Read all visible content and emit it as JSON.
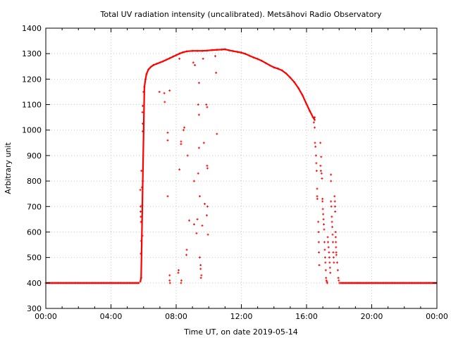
{
  "chart_data": {
    "type": "scatter",
    "title": "Total UV radiation intensity (uncalibrated). Metsähovi Radio Observatory",
    "xlabel": "Time UT, on date 2019-05-14",
    "ylabel": "Arbitrary unit",
    "xlim": [
      0,
      24
    ],
    "ylim": [
      300,
      1400
    ],
    "grid": true,
    "x_ticks": [
      0,
      4,
      8,
      12,
      16,
      20,
      24
    ],
    "x_tick_labels": [
      "00:00",
      "04:00",
      "08:00",
      "12:00",
      "16:00",
      "20:00",
      "00:00"
    ],
    "y_ticks": [
      300,
      400,
      500,
      600,
      700,
      800,
      900,
      1000,
      1100,
      1200,
      1300,
      1400
    ],
    "y_tick_labels": [
      "300",
      "400",
      "500",
      "600",
      "700",
      "800",
      "900",
      "1000",
      "1100",
      "1200",
      "1300",
      "1400"
    ],
    "color": "#ff0000",
    "baseline_segments": [
      {
        "x_start": 0,
        "x_end": 5.75,
        "step": 0.08,
        "value": 400
      },
      {
        "x_start": 18.1,
        "x_end": 24,
        "step": 0.08,
        "value": 400
      }
    ],
    "main_curve": [
      [
        5.8,
        405
      ],
      [
        5.85,
        420
      ],
      [
        5.95,
        800
      ],
      [
        6.05,
        1170
      ],
      [
        6.12,
        1200
      ],
      [
        6.18,
        1220
      ],
      [
        6.3,
        1238
      ],
      [
        6.45,
        1248
      ],
      [
        6.6,
        1255
      ],
      [
        6.8,
        1260
      ],
      [
        7.0,
        1265
      ],
      [
        7.2,
        1270
      ],
      [
        7.4,
        1276
      ],
      [
        7.6,
        1282
      ],
      [
        7.8,
        1288
      ],
      [
        8.0,
        1294
      ],
      [
        8.2,
        1300
      ],
      [
        8.4,
        1305
      ],
      [
        8.65,
        1309
      ],
      [
        9.0,
        1311
      ],
      [
        9.3,
        1311
      ],
      [
        9.6,
        1311
      ],
      [
        9.9,
        1312
      ],
      [
        10.2,
        1314
      ],
      [
        10.5,
        1315
      ],
      [
        10.8,
        1316
      ],
      [
        11.0,
        1317
      ],
      [
        11.25,
        1313
      ],
      [
        11.5,
        1310
      ],
      [
        11.75,
        1307
      ],
      [
        12.0,
        1304
      ],
      [
        12.25,
        1299
      ],
      [
        12.5,
        1292
      ],
      [
        12.75,
        1285
      ],
      [
        13.0,
        1279
      ],
      [
        13.25,
        1272
      ],
      [
        13.5,
        1263
      ],
      [
        13.75,
        1254
      ],
      [
        14.0,
        1246
      ],
      [
        14.25,
        1241
      ],
      [
        14.5,
        1234
      ],
      [
        14.75,
        1222
      ],
      [
        15.0,
        1206
      ],
      [
        15.25,
        1188
      ],
      [
        15.5,
        1165
      ],
      [
        15.75,
        1137
      ],
      [
        16.0,
        1102
      ],
      [
        16.2,
        1075
      ],
      [
        16.4,
        1050
      ],
      [
        16.5,
        1040
      ]
    ],
    "scatter": [
      [
        5.8,
        765
      ],
      [
        5.82,
        700
      ],
      [
        5.82,
        680
      ],
      [
        5.83,
        660
      ],
      [
        5.84,
        640
      ],
      [
        5.85,
        565
      ],
      [
        5.83,
        515
      ],
      [
        5.87,
        840
      ],
      [
        5.9,
        775
      ],
      [
        5.92,
        705
      ],
      [
        5.93,
        585
      ],
      [
        5.95,
        995
      ],
      [
        5.95,
        1025
      ],
      [
        5.93,
        1070
      ],
      [
        5.95,
        1095
      ],
      [
        6.0,
        1150
      ],
      [
        6.97,
        1150
      ],
      [
        7.27,
        1145
      ],
      [
        7.3,
        1110
      ],
      [
        7.48,
        990
      ],
      [
        7.48,
        960
      ],
      [
        7.48,
        740
      ],
      [
        7.6,
        430
      ],
      [
        7.6,
        410
      ],
      [
        7.62,
        400
      ],
      [
        7.6,
        1155
      ],
      [
        8.2,
        1280
      ],
      [
        8.2,
        845
      ],
      [
        8.15,
        450
      ],
      [
        8.13,
        440
      ],
      [
        8.3,
        955
      ],
      [
        8.3,
        945
      ],
      [
        8.45,
        1000
      ],
      [
        8.5,
        1010
      ],
      [
        8.3,
        400
      ],
      [
        8.32,
        410
      ],
      [
        8.7,
        900
      ],
      [
        8.65,
        530
      ],
      [
        8.63,
        510
      ],
      [
        8.8,
        645
      ],
      [
        9.05,
        1265
      ],
      [
        9.15,
        1255
      ],
      [
        9.1,
        800
      ],
      [
        9.1,
        630
      ],
      [
        9.25,
        595
      ],
      [
        9.3,
        650
      ],
      [
        9.35,
        830
      ],
      [
        9.4,
        1185
      ],
      [
        9.35,
        1100
      ],
      [
        9.4,
        1060
      ],
      [
        9.4,
        930
      ],
      [
        9.45,
        740
      ],
      [
        9.45,
        500
      ],
      [
        9.5,
        470
      ],
      [
        9.5,
        455
      ],
      [
        9.55,
        430
      ],
      [
        9.52,
        420
      ],
      [
        9.65,
        1280
      ],
      [
        9.7,
        950
      ],
      [
        9.75,
        710
      ],
      [
        9.6,
        625
      ],
      [
        9.85,
        1100
      ],
      [
        9.9,
        1090
      ],
      [
        9.9,
        860
      ],
      [
        9.92,
        850
      ],
      [
        9.92,
        700
      ],
      [
        9.88,
        665
      ],
      [
        9.95,
        590
      ],
      [
        10.4,
        1290
      ],
      [
        10.45,
        1225
      ],
      [
        10.5,
        985
      ],
      [
        16.45,
        1030
      ],
      [
        16.5,
        1050
      ],
      [
        16.5,
        1010
      ],
      [
        16.52,
        950
      ],
      [
        16.55,
        935
      ],
      [
        16.58,
        900
      ],
      [
        16.6,
        870
      ],
      [
        16.62,
        840
      ],
      [
        16.65,
        770
      ],
      [
        16.65,
        740
      ],
      [
        16.66,
        730
      ],
      [
        16.72,
        640
      ],
      [
        16.74,
        600
      ],
      [
        16.75,
        560
      ],
      [
        16.76,
        520
      ],
      [
        16.78,
        470
      ],
      [
        16.85,
        950
      ],
      [
        16.86,
        860
      ],
      [
        16.88,
        840
      ],
      [
        16.9,
        895
      ],
      [
        16.92,
        830
      ],
      [
        16.95,
        810
      ],
      [
        16.98,
        730
      ],
      [
        16.98,
        720
      ],
      [
        17.0,
        690
      ],
      [
        17.02,
        670
      ],
      [
        17.04,
        650
      ],
      [
        17.06,
        630
      ],
      [
        17.08,
        610
      ],
      [
        17.1,
        560
      ],
      [
        17.12,
        530
      ],
      [
        17.14,
        500
      ],
      [
        17.16,
        480
      ],
      [
        17.18,
        450
      ],
      [
        17.2,
        420
      ],
      [
        17.22,
        410
      ],
      [
        17.25,
        405
      ],
      [
        17.27,
        400
      ],
      [
        17.3,
        580
      ],
      [
        17.32,
        560
      ],
      [
        17.35,
        540
      ],
      [
        17.38,
        520
      ],
      [
        17.4,
        500
      ],
      [
        17.42,
        480
      ],
      [
        17.44,
        460
      ],
      [
        17.46,
        440
      ],
      [
        17.5,
        825
      ],
      [
        17.5,
        800
      ],
      [
        17.5,
        720
      ],
      [
        17.52,
        700
      ],
      [
        17.55,
        660
      ],
      [
        17.56,
        640
      ],
      [
        17.58,
        620
      ],
      [
        17.6,
        590
      ],
      [
        17.62,
        560
      ],
      [
        17.64,
        520
      ],
      [
        17.66,
        500
      ],
      [
        17.68,
        480
      ],
      [
        17.72,
        740
      ],
      [
        17.74,
        720
      ],
      [
        17.75,
        700
      ],
      [
        17.76,
        680
      ],
      [
        17.78,
        600
      ],
      [
        17.79,
        580
      ],
      [
        17.8,
        560
      ],
      [
        17.81,
        540
      ],
      [
        17.82,
        520
      ],
      [
        17.83,
        510
      ],
      [
        17.88,
        480
      ],
      [
        17.92,
        450
      ],
      [
        17.95,
        420
      ],
      [
        17.98,
        410
      ],
      [
        18.02,
        400
      ]
    ]
  }
}
